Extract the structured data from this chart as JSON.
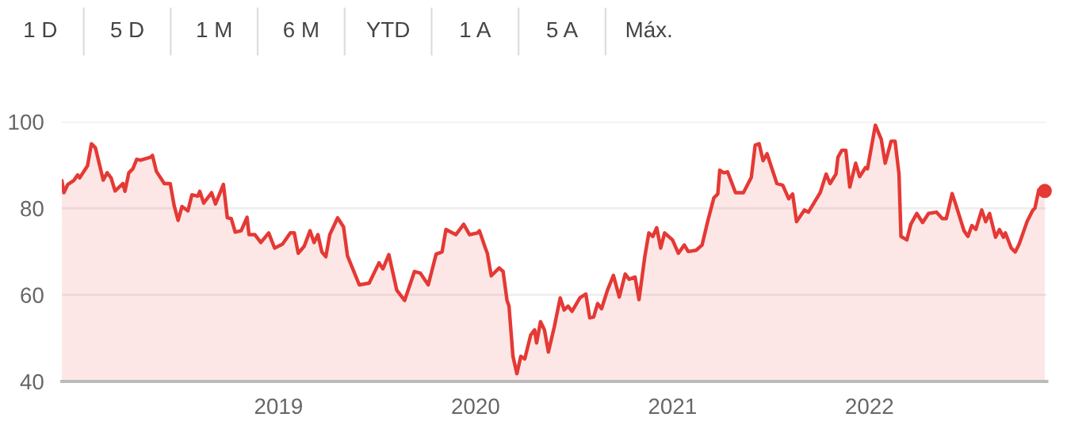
{
  "chart_data": {
    "type": "area",
    "annotations": [
      "1 D",
      "5 D",
      "1 M",
      "6 M",
      "YTD",
      "1 A",
      "5 A",
      "Máx."
    ],
    "xlim": [
      2017.9,
      2022.9
    ],
    "xticks": [
      2019,
      2020,
      2021,
      2022
    ],
    "ylim": [
      40,
      100
    ],
    "yticks": [
      40,
      60,
      80,
      100
    ],
    "grid": "y",
    "series": [
      {
        "color": "#e53935",
        "x": [
          2017.9,
          2017.91,
          2017.93,
          2017.96,
          2017.98,
          2017.99,
          2018.03,
          2018.05,
          2018.07,
          2018.11,
          2018.13,
          2018.15,
          2018.17,
          2018.21,
          2018.22,
          2018.24,
          2018.26,
          2018.28,
          2018.3,
          2018.35,
          2018.36,
          2018.38,
          2018.42,
          2018.45,
          2018.47,
          2018.49,
          2018.51,
          2018.54,
          2018.56,
          2018.59,
          2018.6,
          2018.62,
          2018.66,
          2018.68,
          2018.72,
          2018.74,
          2018.76,
          2018.78,
          2018.81,
          2018.84,
          2018.85,
          2018.88,
          2018.91,
          2018.95,
          2018.98,
          2019.02,
          2019.06,
          2019.08,
          2019.1,
          2019.13,
          2019.16,
          2019.18,
          2019.2,
          2019.22,
          2019.24,
          2019.26,
          2019.3,
          2019.33,
          2019.35,
          2019.41,
          2019.46,
          2019.51,
          2019.53,
          2019.56,
          2019.6,
          2019.64,
          2019.69,
          2019.72,
          2019.76,
          2019.8,
          2019.83,
          2019.85,
          2019.9,
          2019.94,
          2019.97,
          2020.01,
          2020.02,
          2020.05,
          2020.06,
          2020.08,
          2020.12,
          2020.14,
          2020.16,
          2020.17,
          2020.19,
          2020.21,
          2020.23,
          2020.25,
          2020.28,
          2020.3,
          2020.31,
          2020.33,
          2020.35,
          2020.37,
          2020.4,
          2020.43,
          2020.45,
          2020.47,
          2020.49,
          2020.53,
          2020.56,
          2020.58,
          2020.6,
          2020.62,
          2020.64,
          2020.67,
          2020.7,
          2020.73,
          2020.76,
          2020.78,
          2020.81,
          2020.83,
          2020.86,
          2020.88,
          2020.9,
          2020.92,
          2020.94,
          2020.96,
          2021.0,
          2021.03,
          2021.06,
          2021.08,
          2021.12,
          2021.15,
          2021.18,
          2021.21,
          2021.23,
          2021.24,
          2021.26,
          2021.28,
          2021.32,
          2021.36,
          2021.4,
          2021.42,
          2021.44,
          2021.46,
          2021.48,
          2021.53,
          2021.56,
          2021.59,
          2021.61,
          2021.63,
          2021.67,
          2021.69,
          2021.75,
          2021.78,
          2021.8,
          2021.83,
          2021.84,
          2021.86,
          2021.88,
          2021.9,
          2021.93,
          2021.95,
          2021.98,
          2021.99,
          2022.03,
          2022.06,
          2022.08,
          2022.11,
          2022.13,
          2022.15,
          2022.16,
          2022.19,
          2022.21,
          2022.24,
          2022.27,
          2022.3,
          2022.34,
          2022.37,
          2022.39,
          2022.42,
          2022.44,
          2022.48,
          2022.5,
          2022.52,
          2022.54,
          2022.57,
          2022.59,
          2022.61,
          2022.64,
          2022.66,
          2022.68,
          2022.69,
          2022.72,
          2022.74,
          2022.76,
          2022.8,
          2022.83,
          2022.84,
          2022.86,
          2022.89
        ],
        "values": [
          86.4,
          83.6,
          85.5,
          86.4,
          87.7,
          87.0,
          89.8,
          94.9,
          94.0,
          86.5,
          88.2,
          87.0,
          84.0,
          85.7,
          83.9,
          88.2,
          89.1,
          91.3,
          91.1,
          91.8,
          92.2,
          88.5,
          85.7,
          85.7,
          80.6,
          77.2,
          80.4,
          79.4,
          83.1,
          82.8,
          83.9,
          81.2,
          83.6,
          81.0,
          85.5,
          77.8,
          77.6,
          74.5,
          74.8,
          77.9,
          73.9,
          73.9,
          72.1,
          74.3,
          70.8,
          71.7,
          74.3,
          74.3,
          69.6,
          71.2,
          74.8,
          72.1,
          73.9,
          69.9,
          68.8,
          73.9,
          77.8,
          75.7,
          69.0,
          62.3,
          62.7,
          67.4,
          66.0,
          69.3,
          61.1,
          58.7,
          65.4,
          65.0,
          62.3,
          69.4,
          69.9,
          75.1,
          73.9,
          76.3,
          73.9,
          74.3,
          74.8,
          70.8,
          69.6,
          64.4,
          66.2,
          65.4,
          58.7,
          57.4,
          45.8,
          41.8,
          45.8,
          45.2,
          50.7,
          51.9,
          48.9,
          53.8,
          51.9,
          46.8,
          52.6,
          59.3,
          56.5,
          57.4,
          56.2,
          59.3,
          60.2,
          54.7,
          54.9,
          58.0,
          56.8,
          61.1,
          64.5,
          59.5,
          64.8,
          63.6,
          64.1,
          58.9,
          69.0,
          74.3,
          73.5,
          75.5,
          70.8,
          74.3,
          72.7,
          69.6,
          71.5,
          70.0,
          70.3,
          71.5,
          77.2,
          82.4,
          83.3,
          88.8,
          88.2,
          88.4,
          83.6,
          83.6,
          87.1,
          94.6,
          94.9,
          91.0,
          92.6,
          85.7,
          85.3,
          82.2,
          83.3,
          76.9,
          79.6,
          79.1,
          83.6,
          87.9,
          85.7,
          87.9,
          91.8,
          93.4,
          93.4,
          84.9,
          90.4,
          87.3,
          89.4,
          89.1,
          99.2,
          95.9,
          90.4,
          95.5,
          95.5,
          87.9,
          73.5,
          72.7,
          76.3,
          78.8,
          76.7,
          78.8,
          79.1,
          77.6,
          77.6,
          83.4,
          80.6,
          74.8,
          73.5,
          76.0,
          75.1,
          79.6,
          76.9,
          78.8,
          73.3,
          75.1,
          73.3,
          74.3,
          70.8,
          69.9,
          71.7,
          76.9,
          79.6,
          80.0,
          84.3,
          84.0
        ]
      },
      {
        "type": "scatter",
        "color": "#e53935",
        "x": [
          2022.89
        ],
        "values": [
          84.0
        ]
      }
    ]
  }
}
